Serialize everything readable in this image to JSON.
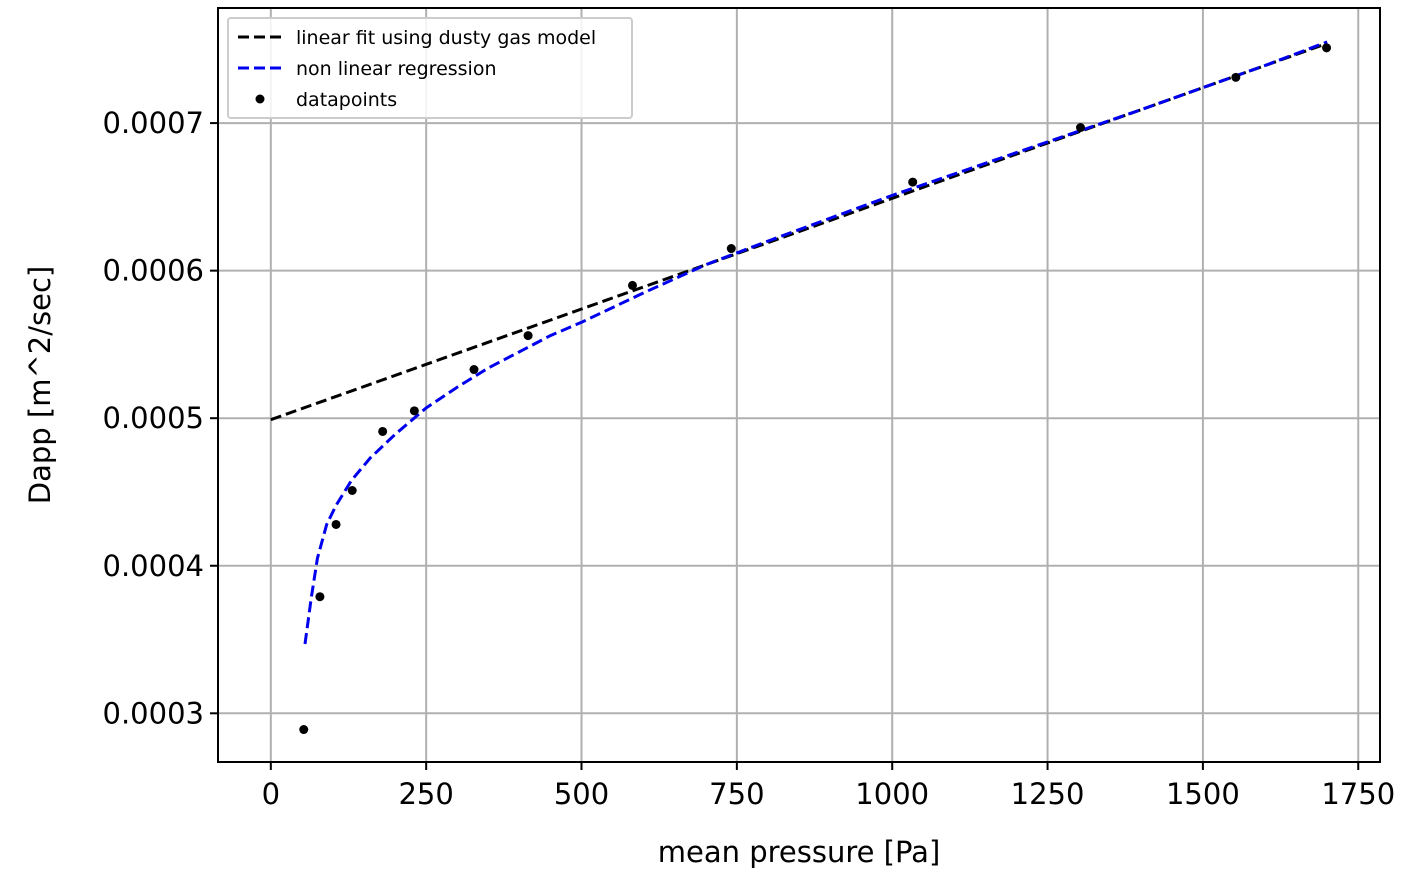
{
  "chart_data": {
    "type": "scatter",
    "xlabel": "mean pressure [Pa]",
    "ylabel": "Dapp [m^2/sec]",
    "xlim": [
      -85,
      1785
    ],
    "ylim": [
      0.000267,
      0.000778
    ],
    "xticks": [
      0,
      250,
      500,
      750,
      1000,
      1250,
      1500,
      1750
    ],
    "xtick_labels": [
      "0",
      "250",
      "500",
      "750",
      "1000",
      "1250",
      "1500",
      "1750"
    ],
    "yticks": [
      0.0003,
      0.0004,
      0.0005,
      0.0006,
      0.0007
    ],
    "ytick_labels": [
      "0.0003",
      "0.0004",
      "0.0005",
      "0.0006",
      "0.0007"
    ],
    "grid": true,
    "legend_position": "top-left",
    "series": [
      {
        "name": "linear fit using dusty gas model",
        "kind": "line",
        "style": "dashed",
        "color": "#000000",
        "x": [
          0,
          1700
        ],
        "y": [
          0.000499,
          0.000754
        ]
      },
      {
        "name": "non linear regression",
        "kind": "line",
        "style": "dashed",
        "color": "#0000ee",
        "x": [
          55,
          65,
          75,
          90,
          105,
          130,
          160,
          200,
          250,
          300,
          350,
          400,
          450,
          500,
          600,
          700,
          800,
          1000,
          1200,
          1400,
          1600,
          1700
        ],
        "y": [
          0.000347,
          0.000378,
          0.000405,
          0.000428,
          0.000441,
          0.000458,
          0.000473,
          0.000489,
          0.000507,
          0.000521,
          0.000534,
          0.000545,
          0.000556,
          0.000565,
          0.000585,
          0.000604,
          0.00062,
          0.000651,
          0.00068,
          0.000709,
          0.000739,
          0.000755
        ]
      },
      {
        "name": "datapoints",
        "kind": "scatter",
        "color": "#000000",
        "x": [
          53,
          79,
          105,
          131,
          180,
          231,
          327,
          414,
          582,
          741,
          1033,
          1303,
          1553,
          1699
        ],
        "y": [
          0.000289,
          0.000379,
          0.000428,
          0.000451,
          0.000491,
          0.000505,
          0.000533,
          0.000556,
          0.00059,
          0.000615,
          0.00066,
          0.000697,
          0.000731,
          0.000751
        ]
      }
    ]
  }
}
